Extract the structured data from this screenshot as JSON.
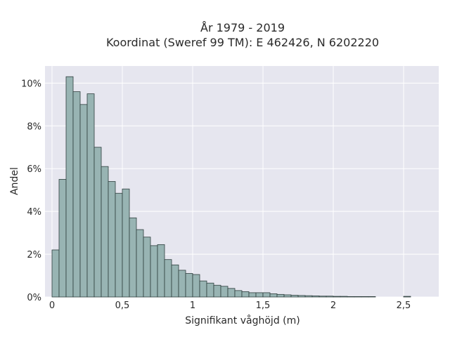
{
  "chart_data": {
    "type": "bar",
    "title_line1": "År 1979 - 2019",
    "title_line2": "Koordinat (Sweref 99 TM): E 462426, N 6202220",
    "xlabel": "Signifikant våghöjd (m)",
    "ylabel": "Andel",
    "xlim": [
      -0.05,
      2.75
    ],
    "ylim": [
      0,
      10.8
    ],
    "bin_width": 0.05,
    "bin_start": 0.0,
    "values": [
      2.2,
      5.5,
      10.3,
      9.6,
      9.0,
      9.5,
      7.0,
      6.1,
      5.4,
      4.85,
      5.05,
      3.7,
      3.15,
      2.8,
      2.4,
      2.45,
      1.75,
      1.5,
      1.25,
      1.1,
      1.05,
      0.75,
      0.65,
      0.55,
      0.5,
      0.4,
      0.3,
      0.25,
      0.2,
      0.2,
      0.2,
      0.15,
      0.12,
      0.1,
      0.08,
      0.07,
      0.06,
      0.05,
      0.04,
      0.04,
      0.03,
      0.03,
      0.02,
      0.02,
      0.02,
      0.02,
      0.0,
      0.0,
      0.0,
      0.0,
      0.03
    ],
    "x_ticks": [
      {
        "value": 0,
        "label": "0"
      },
      {
        "value": 0.5,
        "label": "0,5"
      },
      {
        "value": 1,
        "label": "1"
      },
      {
        "value": 1.5,
        "label": "1,5"
      },
      {
        "value": 2,
        "label": "2"
      },
      {
        "value": 2.5,
        "label": "2,5"
      }
    ],
    "y_ticks": [
      {
        "value": 0,
        "label": "0%"
      },
      {
        "value": 2,
        "label": "2%"
      },
      {
        "value": 4,
        "label": "4%"
      },
      {
        "value": 6,
        "label": "6%"
      },
      {
        "value": 8,
        "label": "8%"
      },
      {
        "value": 10,
        "label": "10%"
      }
    ],
    "grid": true,
    "bar_color": "#98b4b3",
    "bar_edge_color": "#2f3f3e",
    "plot_background": "#e6e6ef",
    "grid_color": "#ffffff"
  }
}
